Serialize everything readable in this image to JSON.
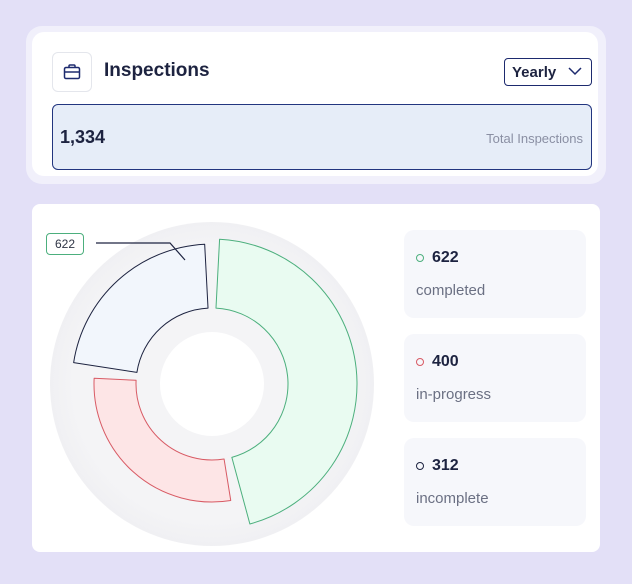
{
  "header": {
    "title": "Inspections",
    "icon": "briefcase-icon",
    "period_selected": "Yearly",
    "total_value": "1,334",
    "total_label": "Total Inspections"
  },
  "chart": {
    "callout_value": "622",
    "colors": {
      "completed_fill": "#e9fbf1",
      "completed_stroke": "#4caf7d",
      "in_progress_fill": "#fde5e6",
      "in_progress_stroke": "#d85a64",
      "incomplete_fill": "#f2f6fc",
      "incomplete_stroke": "#1d2340"
    }
  },
  "chart_data": {
    "type": "pie",
    "variant": "donut",
    "categories": [
      "completed",
      "in-progress",
      "incomplete"
    ],
    "values": [
      622,
      400,
      312
    ],
    "legend_placement": "right"
  },
  "legend": [
    {
      "value": "622",
      "label": "completed",
      "color": "#4caf7d"
    },
    {
      "value": "400",
      "label": "in-progress",
      "color": "#d85a64"
    },
    {
      "value": "312",
      "label": "incomplete",
      "color": "#1d2340"
    }
  ]
}
